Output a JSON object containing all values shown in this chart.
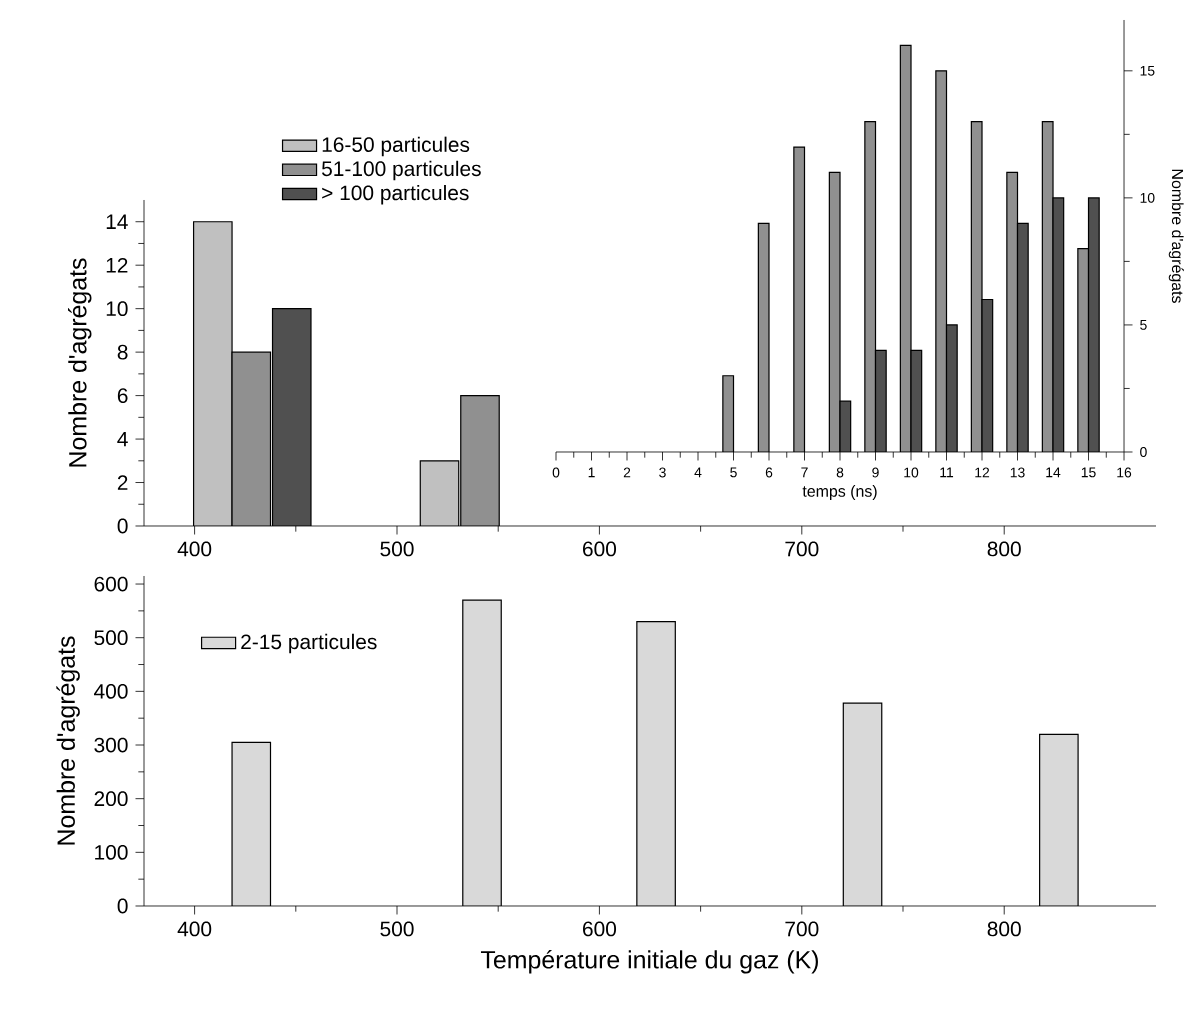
{
  "chart_data": [
    {
      "type": "bar",
      "ylabel": "Nombre d'agrégats",
      "xlim": [
        375,
        875
      ],
      "xticks": [
        400,
        500,
        600,
        700,
        800
      ],
      "ylim": [
        0,
        15
      ],
      "yticks": [
        0,
        2,
        4,
        6,
        8,
        10,
        12,
        14
      ],
      "legend": "top",
      "series": [
        {
          "name": "16-50 particules",
          "color": "#c0c0c0",
          "x": [
            409,
            521
          ],
          "values": [
            14,
            3
          ]
        },
        {
          "name": "51-100 particules",
          "color": "#909090",
          "x": [
            428,
            541
          ],
          "values": [
            8,
            6
          ]
        },
        {
          "name": "> 100 particules",
          "color": "#505050",
          "x": [
            448
          ],
          "values": [
            10
          ]
        }
      ]
    },
    {
      "type": "bar",
      "xlabel": "temps (ns)",
      "ylabel": "Nombre d'agrégats",
      "xlim": [
        0,
        16
      ],
      "xticks": [
        0,
        1,
        2,
        3,
        4,
        5,
        6,
        7,
        8,
        9,
        10,
        11,
        12,
        13,
        14,
        15,
        16
      ],
      "ylim": [
        0,
        17
      ],
      "yticks": [
        0,
        5,
        10,
        15
      ],
      "series": [
        {
          "color": "#909090",
          "x": [
            5,
            6,
            7,
            8,
            9,
            10,
            11,
            12,
            13,
            14,
            15
          ],
          "values": [
            3,
            9,
            12,
            11,
            13,
            16,
            15,
            13,
            11,
            13,
            8
          ]
        },
        {
          "color": "#505050",
          "x": [
            8,
            9,
            10,
            11,
            12,
            13,
            14,
            15
          ],
          "values": [
            2,
            4,
            4,
            5,
            6,
            9,
            10,
            10
          ]
        }
      ]
    },
    {
      "type": "bar",
      "xlabel": "Température initiale du gaz (K)",
      "ylabel": "Nombre d'agrégats",
      "xlim": [
        375,
        875
      ],
      "xticks": [
        400,
        500,
        600,
        700,
        800
      ],
      "ylim": [
        0,
        615
      ],
      "yticks": [
        0,
        100,
        200,
        300,
        400,
        500,
        600
      ],
      "legend": "top left",
      "series": [
        {
          "name": "2-15 particules",
          "color": "#d9d9d9",
          "x": [
            428,
            542,
            628,
            730,
            827
          ],
          "values": [
            305,
            570,
            530,
            378,
            320
          ]
        }
      ]
    }
  ]
}
